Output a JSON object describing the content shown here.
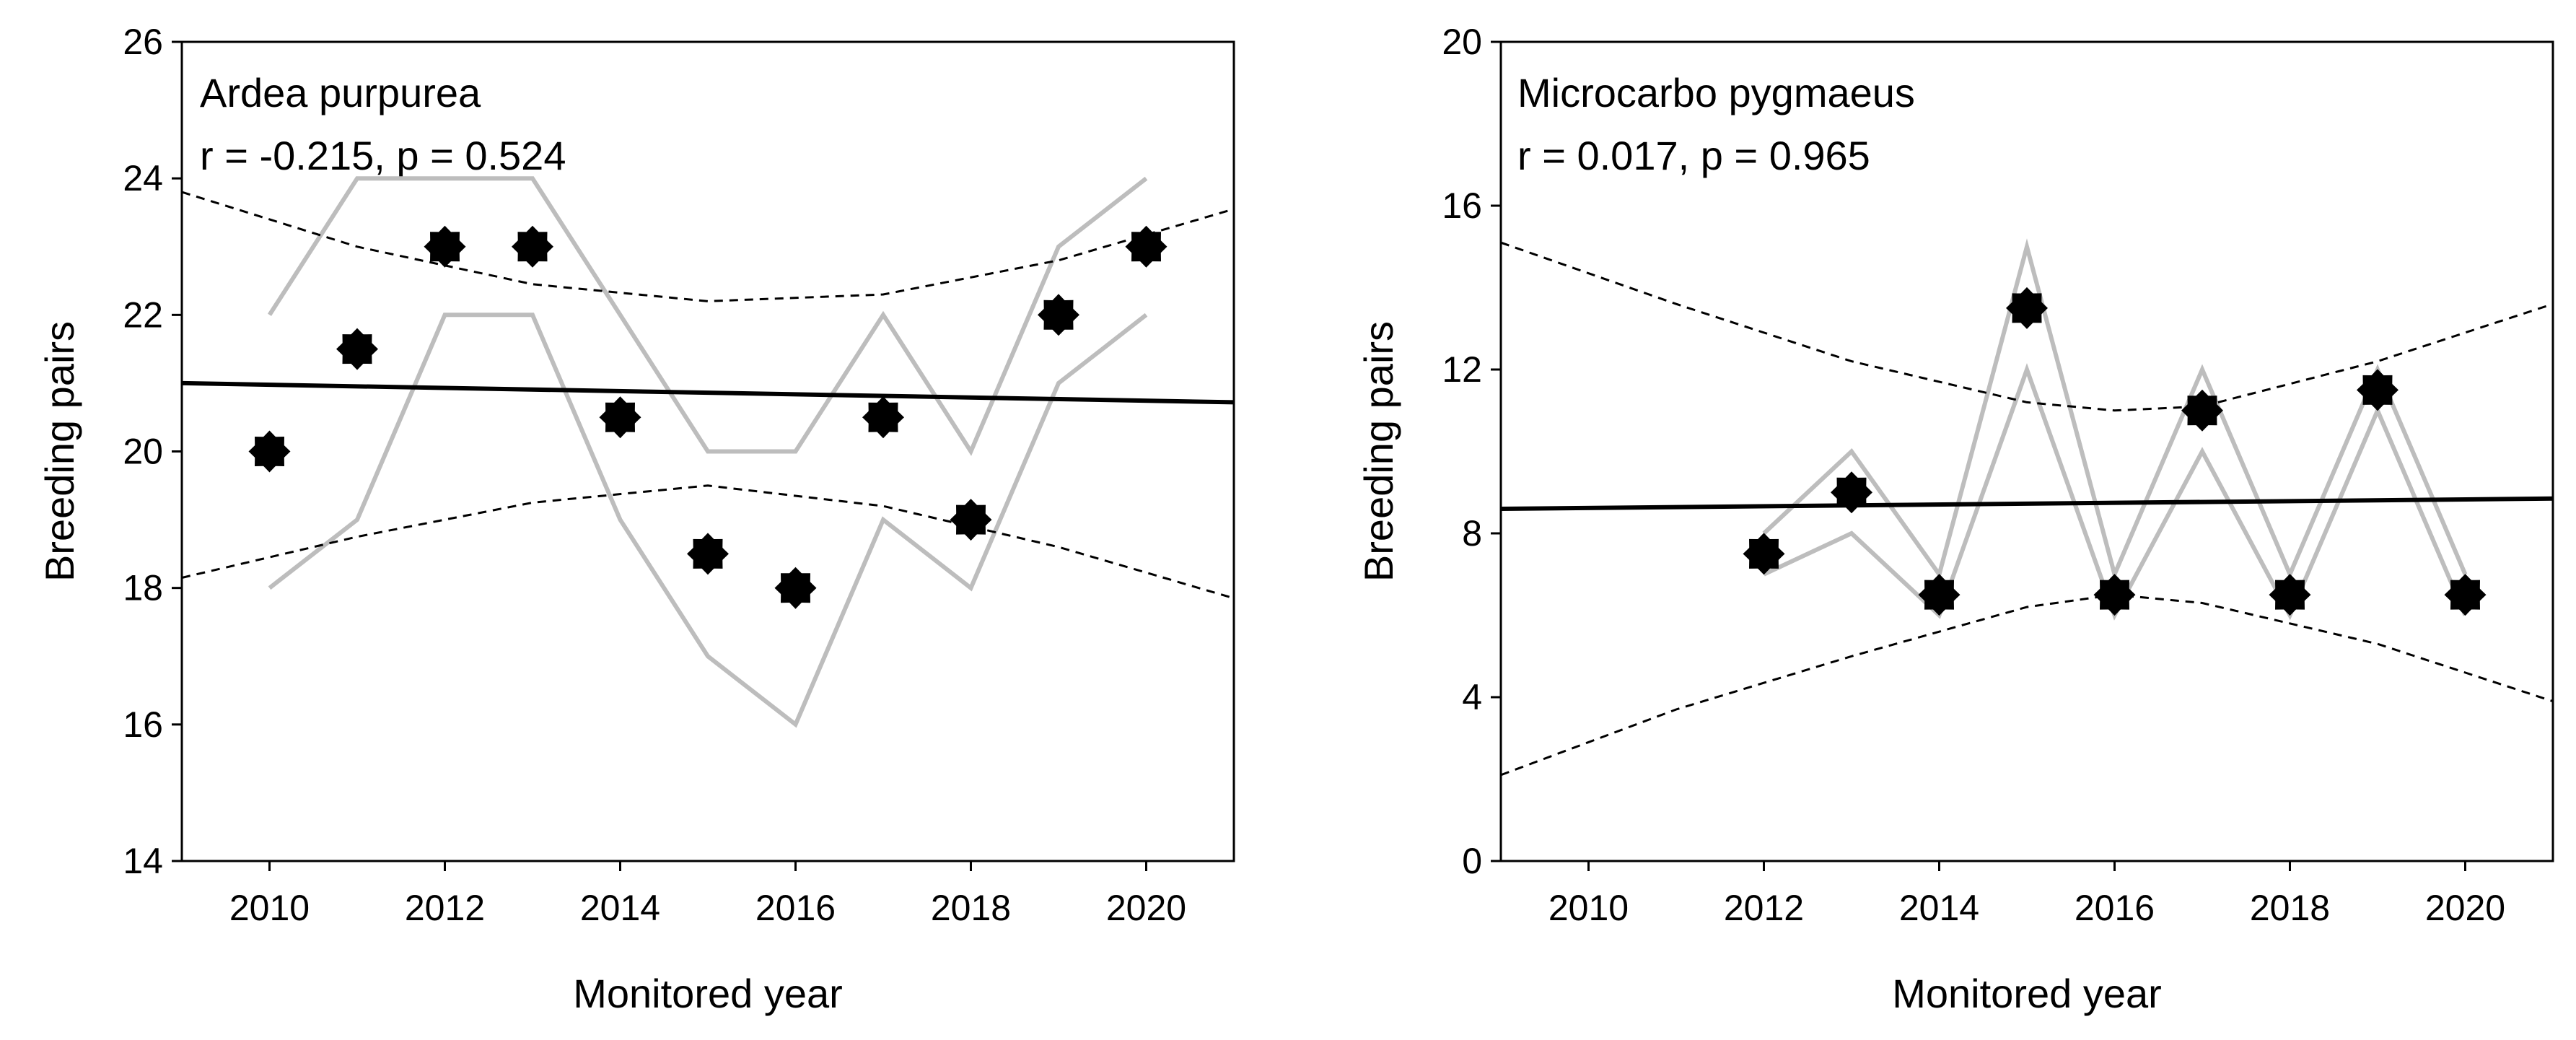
{
  "chart_data": [
    {
      "type": "scatter",
      "title": "Ardea purpurea",
      "subtitle": "r = -0.215, p = 0.524",
      "xlabel": "Monitored year",
      "ylabel": "Breeding pairs",
      "xlim": [
        2009,
        2021
      ],
      "ylim": [
        14,
        26
      ],
      "xticks": [
        2010,
        2012,
        2014,
        2016,
        2018,
        2020
      ],
      "yticks": [
        14,
        16,
        18,
        20,
        22,
        24,
        26
      ],
      "grid": false,
      "series": [
        {
          "name": "observed",
          "x": [
            2010,
            2011,
            2012,
            2013,
            2014,
            2015,
            2016,
            2017,
            2018,
            2019,
            2020
          ],
          "y": [
            20,
            21.5,
            23,
            23,
            20.5,
            18.5,
            18,
            20.5,
            19,
            22,
            23
          ]
        },
        {
          "name": "range upper",
          "x": [
            2010,
            2011,
            2012,
            2013,
            2014,
            2015,
            2016,
            2017,
            2018,
            2019,
            2020
          ],
          "y": [
            22,
            24,
            24,
            24,
            22,
            20,
            20,
            22,
            20,
            23,
            24
          ]
        },
        {
          "name": "range lower",
          "x": [
            2010,
            2011,
            2012,
            2013,
            2014,
            2015,
            2016,
            2017,
            2018,
            2019,
            2020
          ],
          "y": [
            18,
            19,
            22,
            22,
            19,
            17,
            16,
            19,
            18,
            21,
            22
          ]
        },
        {
          "name": "regression",
          "x": [
            2009,
            2021
          ],
          "y": [
            21.0,
            20.72
          ]
        },
        {
          "name": "ci upper",
          "x": [
            2009,
            2011,
            2013,
            2015,
            2017,
            2019,
            2021
          ],
          "y": [
            23.8,
            23.0,
            22.45,
            22.2,
            22.3,
            22.8,
            23.55
          ]
        },
        {
          "name": "ci lower",
          "x": [
            2009,
            2011,
            2013,
            2015,
            2017,
            2019,
            2021
          ],
          "y": [
            18.15,
            18.75,
            19.25,
            19.5,
            19.2,
            18.6,
            17.85
          ]
        }
      ]
    },
    {
      "type": "scatter",
      "title": "Microcarbo pygmaeus",
      "subtitle": "r = 0.017, p = 0.965",
      "xlabel": "Monitored year",
      "ylabel": "Breeding pairs",
      "xlim": [
        2009,
        2021
      ],
      "ylim": [
        0,
        20
      ],
      "xticks": [
        2010,
        2012,
        2014,
        2016,
        2018,
        2020
      ],
      "yticks": [
        0,
        4,
        8,
        12,
        16,
        20
      ],
      "grid": false,
      "series": [
        {
          "name": "observed",
          "x": [
            2012,
            2013,
            2014,
            2015,
            2016,
            2017,
            2018,
            2019,
            2020
          ],
          "y": [
            7.5,
            9,
            6.5,
            13.5,
            6.5,
            11,
            6.5,
            11.5,
            6.5
          ]
        },
        {
          "name": "range upper",
          "x": [
            2012,
            2013,
            2014,
            2015,
            2016,
            2017,
            2018,
            2019,
            2020
          ],
          "y": [
            8,
            10,
            7,
            15,
            7,
            12,
            7,
            12,
            7
          ]
        },
        {
          "name": "range lower",
          "x": [
            2012,
            2013,
            2014,
            2015,
            2016,
            2017,
            2018,
            2019,
            2020
          ],
          "y": [
            7,
            8,
            6,
            12,
            6,
            10,
            6,
            11,
            6
          ]
        },
        {
          "name": "regression",
          "x": [
            2009,
            2021
          ],
          "y": [
            8.6,
            8.85
          ]
        },
        {
          "name": "ci upper",
          "x": [
            2009,
            2011,
            2013,
            2015,
            2016,
            2017,
            2019,
            2021
          ],
          "y": [
            15.1,
            13.6,
            12.2,
            11.2,
            11.0,
            11.1,
            12.2,
            13.6
          ]
        },
        {
          "name": "ci lower",
          "x": [
            2009,
            2011,
            2013,
            2015,
            2016,
            2017,
            2019,
            2021
          ],
          "y": [
            2.1,
            3.7,
            5.0,
            6.2,
            6.5,
            6.3,
            5.3,
            3.9
          ]
        }
      ]
    }
  ]
}
